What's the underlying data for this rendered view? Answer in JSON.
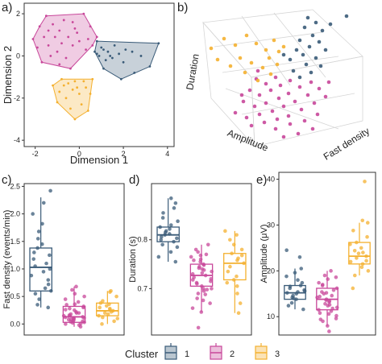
{
  "panels": {
    "a": {
      "label": "a)"
    },
    "b": {
      "label": "b)"
    },
    "c": {
      "label": "c)"
    },
    "d": {
      "label": "d)"
    },
    "e": {
      "label": "e)"
    }
  },
  "colors": {
    "cluster1": "#3a5b78",
    "cluster2": "#c8479a",
    "cluster3": "#f4b02f"
  },
  "legend": {
    "title": "Cluster",
    "items": [
      "1",
      "2",
      "3"
    ]
  },
  "chart_data": [
    {
      "panel": "a",
      "type": "scatter",
      "xlabel": "Dimension 1",
      "ylabel": "Dimension 2",
      "xlim": [
        -2.5,
        4.3
      ],
      "ylim": [
        -4.3,
        2.5
      ],
      "xticks": [
        "-2",
        "0",
        "2",
        "4"
      ],
      "yticks": [
        "-4",
        "-2",
        "0",
        "2"
      ],
      "series": [
        {
          "cluster": "1",
          "points": [
            [
              0.8,
              0.1
            ],
            [
              1.1,
              0.3
            ],
            [
              0.9,
              0.0
            ],
            [
              1.3,
              0.2
            ],
            [
              1.6,
              0.5
            ],
            [
              1.4,
              0.0
            ],
            [
              1.0,
              0.4
            ],
            [
              1.8,
              0.1
            ],
            [
              2.1,
              0.3
            ],
            [
              2.4,
              0.2
            ],
            [
              1.2,
              -0.2
            ],
            [
              0.7,
              0.2
            ],
            [
              1.5,
              -0.1
            ],
            [
              2.0,
              -0.3
            ],
            [
              2.8,
              0.0
            ],
            [
              3.2,
              -0.5
            ],
            [
              3.6,
              0.6
            ],
            [
              2.5,
              -0.8
            ],
            [
              1.9,
              -1.1
            ],
            [
              1.1,
              -0.6
            ],
            [
              0.8,
              0.7
            ]
          ]
        },
        {
          "cluster": "2",
          "points": [
            [
              -2.1,
              0.8
            ],
            [
              -1.8,
              1.4
            ],
            [
              -1.5,
              1.9
            ],
            [
              -1.2,
              1.5
            ],
            [
              -0.9,
              1.2
            ],
            [
              -0.7,
              1.7
            ],
            [
              -0.3,
              1.6
            ],
            [
              -0.1,
              1.1
            ],
            [
              0.2,
              2.0
            ],
            [
              0.5,
              1.4
            ],
            [
              0.8,
              0.9
            ],
            [
              -1.9,
              0.4
            ],
            [
              -1.6,
              0.9
            ],
            [
              -1.4,
              0.5
            ],
            [
              -1.1,
              0.9
            ],
            [
              -0.8,
              0.6
            ],
            [
              -0.5,
              0.9
            ],
            [
              -0.3,
              0.5
            ],
            [
              0.0,
              0.7
            ],
            [
              0.3,
              0.3
            ],
            [
              -1.3,
              0.0
            ],
            [
              -1.0,
              0.2
            ],
            [
              -0.6,
              -0.1
            ],
            [
              -1.7,
              -0.3
            ],
            [
              0.4,
              0.8
            ],
            [
              -0.2,
              1.3
            ],
            [
              -1.4,
              1.2
            ],
            [
              0.6,
              0.5
            ],
            [
              -0.9,
              -0.4
            ],
            [
              -0.4,
              -0.6
            ]
          ]
        },
        {
          "cluster": "3",
          "points": [
            [
              -1.2,
              -1.4
            ],
            [
              -0.8,
              -1.1
            ],
            [
              -0.5,
              -1.3
            ],
            [
              -0.2,
              -1.2
            ],
            [
              0.2,
              -1.2
            ],
            [
              0.6,
              -1.1
            ],
            [
              -0.9,
              -1.7
            ],
            [
              -0.6,
              -2.0
            ],
            [
              -0.3,
              -1.6
            ],
            [
              0.0,
              -1.8
            ],
            [
              0.5,
              -1.8
            ],
            [
              -1.0,
              -2.2
            ],
            [
              -0.4,
              -2.5
            ],
            [
              0.1,
              -2.3
            ],
            [
              0.4,
              -2.6
            ],
            [
              -0.2,
              -3.0
            ],
            [
              -0.1,
              -1.5
            ],
            [
              -0.7,
              -1.4
            ],
            [
              0.3,
              -1.5
            ]
          ]
        }
      ]
    },
    {
      "panel": "b",
      "type": "scatter",
      "xlabel": "Amplitude",
      "ylabel": "Duration",
      "zlabel": "Fast density",
      "series": [
        {
          "cluster": "1",
          "values": 21
        },
        {
          "cluster": "2",
          "values": 40
        },
        {
          "cluster": "3",
          "values": 19
        }
      ]
    },
    {
      "panel": "c",
      "type": "box",
      "ylabel": "Fast density (events/min)",
      "ylim": [
        -0.2,
        2.55
      ],
      "yticks": [
        "0.0",
        "0.5",
        "1.0",
        "1.5",
        "2.0",
        "2.5"
      ],
      "series": [
        {
          "cluster": "1",
          "q1": 0.6,
          "median": 1.03,
          "q3": 1.38,
          "whisker_low": 0.3,
          "whisker_high": 2.3,
          "points": [
            0.3,
            0.35,
            0.45,
            0.55,
            0.6,
            0.65,
            0.72,
            0.8,
            0.88,
            0.95,
            1.0,
            1.05,
            1.1,
            1.18,
            1.25,
            1.3,
            1.38,
            1.45,
            1.55,
            1.68,
            1.82,
            2.0,
            2.2,
            2.42
          ]
        },
        {
          "cluster": "2",
          "q1": 0.03,
          "median": 0.13,
          "q3": 0.32,
          "whisker_low": -0.05,
          "whisker_high": 0.68,
          "points": [
            -0.05,
            -0.02,
            0.0,
            0.02,
            0.03,
            0.05,
            0.07,
            0.08,
            0.1,
            0.12,
            0.13,
            0.15,
            0.18,
            0.2,
            0.22,
            0.25,
            0.28,
            0.3,
            0.32,
            0.35,
            0.4,
            0.45,
            0.5,
            0.55,
            0.62,
            0.68,
            0.05,
            0.1,
            0.15,
            0.2,
            0.04,
            0.08,
            0.01,
            0.11,
            0.16,
            0.26,
            0.36
          ]
        },
        {
          "cluster": "3",
          "q1": 0.15,
          "median": 0.24,
          "q3": 0.38,
          "whisker_low": 0.0,
          "whisker_high": 0.6,
          "points": [
            0.0,
            0.05,
            0.1,
            0.12,
            0.15,
            0.18,
            0.2,
            0.22,
            0.24,
            0.26,
            0.28,
            0.3,
            0.33,
            0.36,
            0.38,
            0.42,
            0.5,
            0.58,
            0.6
          ]
        }
      ]
    },
    {
      "panel": "d",
      "type": "box",
      "ylabel": "Duration (s)",
      "ylim": [
        0.605,
        0.915
      ],
      "yticks": [
        "0.7",
        "0.8"
      ],
      "series": [
        {
          "cluster": "1",
          "q1": 0.796,
          "median": 0.81,
          "q3": 0.826,
          "whisker_low": 0.755,
          "whisker_high": 0.885,
          "points": [
            0.755,
            0.765,
            0.775,
            0.785,
            0.79,
            0.796,
            0.8,
            0.803,
            0.806,
            0.81,
            0.812,
            0.815,
            0.818,
            0.822,
            0.826,
            0.83,
            0.838,
            0.845,
            0.855,
            0.865,
            0.875,
            0.885
          ]
        },
        {
          "cluster": "2",
          "q1": 0.705,
          "median": 0.727,
          "q3": 0.75,
          "whisker_low": 0.652,
          "whisker_high": 0.79,
          "points": [
            0.62,
            0.652,
            0.66,
            0.67,
            0.68,
            0.69,
            0.695,
            0.7,
            0.705,
            0.71,
            0.715,
            0.72,
            0.723,
            0.727,
            0.73,
            0.735,
            0.74,
            0.745,
            0.75,
            0.755,
            0.76,
            0.765,
            0.77,
            0.775,
            0.78,
            0.79,
            0.7,
            0.712,
            0.718,
            0.732,
            0.742,
            0.688,
            0.698,
            0.738,
            0.748,
            0.758,
            0.768,
            0.676
          ]
        },
        {
          "cluster": "3",
          "q1": 0.718,
          "median": 0.752,
          "q3": 0.772,
          "whisker_low": 0.65,
          "whisker_high": 0.818,
          "points": [
            0.65,
            0.67,
            0.69,
            0.705,
            0.712,
            0.718,
            0.725,
            0.735,
            0.745,
            0.752,
            0.758,
            0.762,
            0.768,
            0.772,
            0.78,
            0.79,
            0.8,
            0.81,
            0.818
          ]
        }
      ]
    },
    {
      "panel": "e",
      "type": "box",
      "ylabel": "Amplitude (μV)",
      "ylim": [
        6,
        41.5
      ],
      "yticks": [
        "10",
        "20",
        "30",
        "40"
      ],
      "series": [
        {
          "cluster": "1",
          "q1": 13.8,
          "median": 15.2,
          "q3": 16.8,
          "whisker_low": 11.6,
          "whisker_high": 20.5,
          "points": [
            11.6,
            12.4,
            13.0,
            13.8,
            14.2,
            14.6,
            15.0,
            15.2,
            15.4,
            15.8,
            16.2,
            16.6,
            16.8,
            17.4,
            18.0,
            18.8,
            19.6,
            20.5,
            23.0,
            24.5,
            14.0,
            15.6
          ]
        },
        {
          "cluster": "2",
          "q1": 11.5,
          "median": 13.8,
          "q3": 16.2,
          "whisker_low": 8.0,
          "whisker_high": 20.0,
          "points": [
            6.8,
            8.0,
            9.0,
            9.6,
            10.2,
            10.8,
            11.2,
            11.5,
            12.0,
            12.4,
            12.8,
            13.2,
            13.6,
            13.8,
            14.2,
            14.6,
            15.0,
            15.4,
            15.8,
            16.2,
            16.8,
            17.4,
            18.2,
            19.0,
            20.0,
            11.8,
            12.6,
            13.4,
            14.4,
            15.2,
            10.6,
            9.4,
            17.0,
            18.6
          ]
        },
        {
          "cluster": "3",
          "q1": 21.5,
          "median": 23.2,
          "q3": 26.2,
          "whisker_low": 19.0,
          "whisker_high": 30.5,
          "points": [
            16.2,
            19.0,
            20.0,
            20.8,
            21.5,
            22.2,
            22.8,
            23.2,
            23.8,
            24.4,
            25.0,
            25.8,
            26.2,
            27.4,
            28.8,
            30.5,
            31.0,
            39.5,
            22.0,
            24.0
          ]
        }
      ]
    }
  ]
}
